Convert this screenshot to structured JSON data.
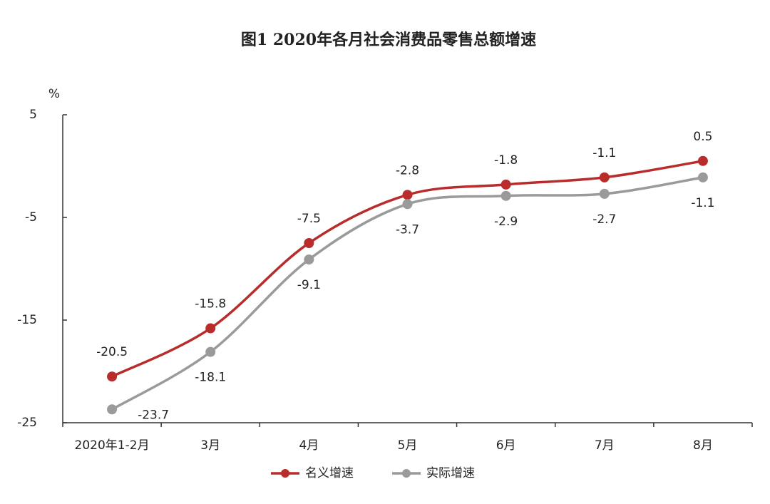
{
  "chart_data": {
    "type": "line",
    "title": "图1  2020年各月社会消费品零售总额增速",
    "y_label": "%",
    "categories": [
      "2020年1-2月",
      "3月",
      "4月",
      "5月",
      "6月",
      "7月",
      "8月"
    ],
    "series": [
      {
        "name": "名义增速",
        "color": "#b82c2c",
        "values": [
          -20.5,
          -15.8,
          -7.5,
          -2.8,
          -1.8,
          -1.1,
          0.5
        ]
      },
      {
        "name": "实际增速",
        "color": "#9a9a9a",
        "values": [
          -23.7,
          -18.1,
          -9.1,
          -3.7,
          -2.9,
          -2.7,
          -1.1
        ]
      }
    ],
    "ylim": [
      -25,
      5
    ],
    "yticks": [
      5,
      -5,
      -15,
      -25
    ],
    "grid": false,
    "legend": "bottom"
  }
}
